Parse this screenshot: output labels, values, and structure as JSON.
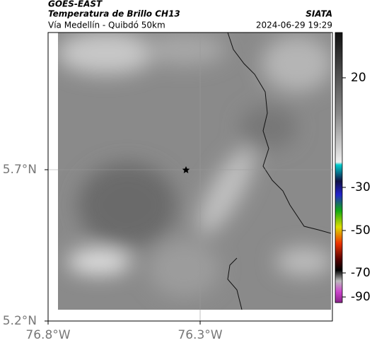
{
  "header": {
    "satellite": "GOES-EAST",
    "product": "Temperatura de Brillo CH13",
    "source": "SIATA",
    "region": "Vía Medellín - Quibdó 50km",
    "datetime": "2024-06-29 19:29"
  },
  "map": {
    "lat_ticks": [
      {
        "value": 5.7,
        "label": "5.7°N"
      },
      {
        "value": 5.2,
        "label": "5.2°N"
      }
    ],
    "lon_ticks": [
      {
        "value": -76.8,
        "label": "76.8°W"
      },
      {
        "value": -76.3,
        "label": "76.3°W"
      }
    ],
    "colorbar_ticks": [
      20,
      -30,
      -50,
      -70,
      -90
    ]
  }
}
